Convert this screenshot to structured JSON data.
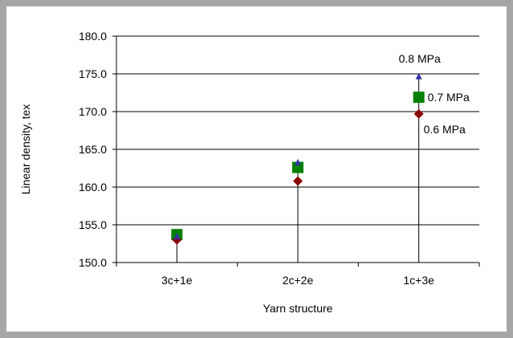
{
  "chart_data": {
    "type": "scatter",
    "title": "",
    "xlabel": "Yarn structure",
    "ylabel": "Linear density, tex",
    "categories": [
      "3c+1e",
      "2c+2e",
      "1c+3e"
    ],
    "ylim": [
      150.0,
      180.0
    ],
    "yticks": [
      "150.0",
      "155.0",
      "160.0",
      "165.0",
      "170.0",
      "175.0",
      "180.0"
    ],
    "grid": "horizontal",
    "series": [
      {
        "name": "0.6 MPa",
        "marker": "diamond",
        "color": "#8b0000",
        "values": [
          153.0,
          160.8,
          169.7
        ]
      },
      {
        "name": "0.7 MPa",
        "marker": "square",
        "color": "#008000",
        "values": [
          153.7,
          162.6,
          171.9
        ]
      },
      {
        "name": "0.8 MPa",
        "marker": "triangle",
        "color": "#3333aa",
        "values": [
          153.4,
          163.2,
          174.6
        ]
      }
    ]
  }
}
